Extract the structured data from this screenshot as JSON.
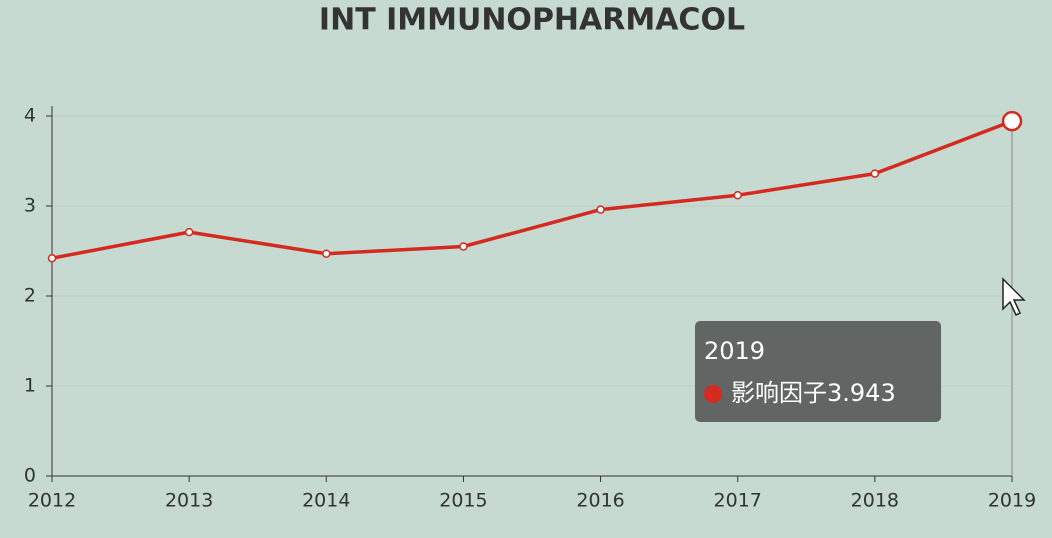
{
  "chart_data": {
    "type": "line",
    "title": "INT IMMUNOPHARMACOL",
    "categories": [
      "2012",
      "2013",
      "2014",
      "2015",
      "2016",
      "2017",
      "2018",
      "2019"
    ],
    "series": [
      {
        "name": "影响因子",
        "color": "#d42a20",
        "values": [
          2.42,
          2.71,
          2.47,
          2.55,
          2.96,
          3.12,
          3.36,
          3.943
        ]
      }
    ],
    "ylim": [
      0,
      4
    ],
    "yticks": [
      0,
      1,
      2,
      3,
      4
    ],
    "grid": true,
    "tooltip": {
      "category_index": 7,
      "series_index": 0
    }
  }
}
